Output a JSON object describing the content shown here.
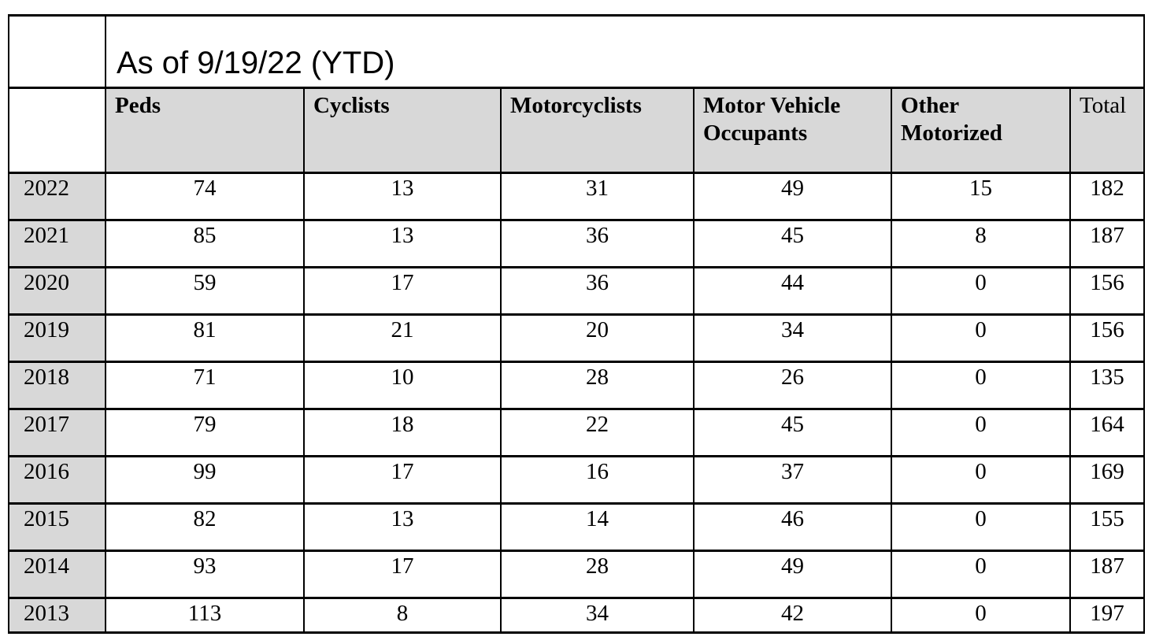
{
  "colors": {
    "border": "#000000",
    "header_bg": "#d8d8d8",
    "page_bg": "#ffffff"
  },
  "chart_data": {
    "type": "table",
    "title": "As of 9/19/22 (YTD)",
    "columns": [
      "Peds",
      "Cyclists",
      "Motorcyclists",
      "Motor Vehicle\nOccupants",
      "Other\nMotorized",
      "Total"
    ],
    "row_label_column": "",
    "rows": [
      {
        "label": "2022",
        "values": [
          74,
          13,
          31,
          49,
          15,
          182
        ]
      },
      {
        "label": "2021",
        "values": [
          85,
          13,
          36,
          45,
          8,
          187
        ]
      },
      {
        "label": "2020",
        "values": [
          59,
          17,
          36,
          44,
          0,
          156
        ]
      },
      {
        "label": "2019",
        "values": [
          81,
          21,
          20,
          34,
          0,
          156
        ]
      },
      {
        "label": "2018",
        "values": [
          71,
          10,
          28,
          26,
          0,
          135
        ]
      },
      {
        "label": "2017",
        "values": [
          79,
          18,
          22,
          45,
          0,
          164
        ]
      },
      {
        "label": "2016",
        "values": [
          99,
          17,
          16,
          37,
          0,
          169
        ]
      },
      {
        "label": "2015",
        "values": [
          82,
          13,
          14,
          46,
          0,
          155
        ]
      },
      {
        "label": "2014",
        "values": [
          93,
          17,
          28,
          49,
          0,
          187
        ]
      },
      {
        "label": "2013",
        "values": [
          113,
          8,
          34,
          42,
          0,
          197
        ]
      }
    ]
  }
}
